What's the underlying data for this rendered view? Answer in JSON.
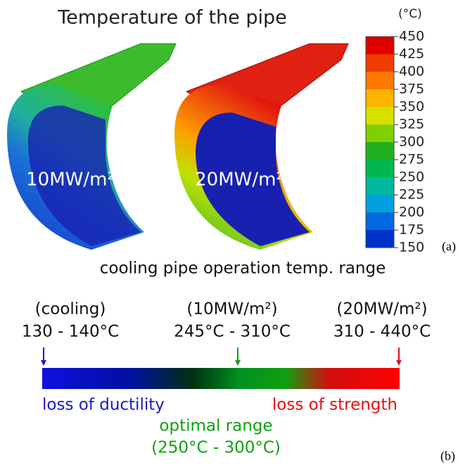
{
  "panel_a": {
    "title": "Temperature of the pipe",
    "unit": "(°C)",
    "colorbar_ticks": [
      "450",
      "425",
      "400",
      "375",
      "350",
      "325",
      "300",
      "275",
      "250",
      "225",
      "200",
      "175",
      "150"
    ],
    "pipes": [
      {
        "label": "10MW/m²"
      },
      {
        "label": "20MW/m²"
      }
    ],
    "panel_label": "(a)"
  },
  "panel_b": {
    "title": "cooling pipe operation temp. range",
    "markers": [
      {
        "case": "(cooling)",
        "range": "130 - 140°C"
      },
      {
        "case": "(10MW/m²)",
        "range": "245°C - 310°C"
      },
      {
        "case": "(20MW/m²)",
        "range": "310 - 440°C"
      }
    ],
    "left_label": "loss of ductility",
    "right_label": "loss of strength",
    "optimal_label": "optimal range",
    "optimal_range": "(250°C - 300°C)",
    "panel_label": "(b)"
  }
}
